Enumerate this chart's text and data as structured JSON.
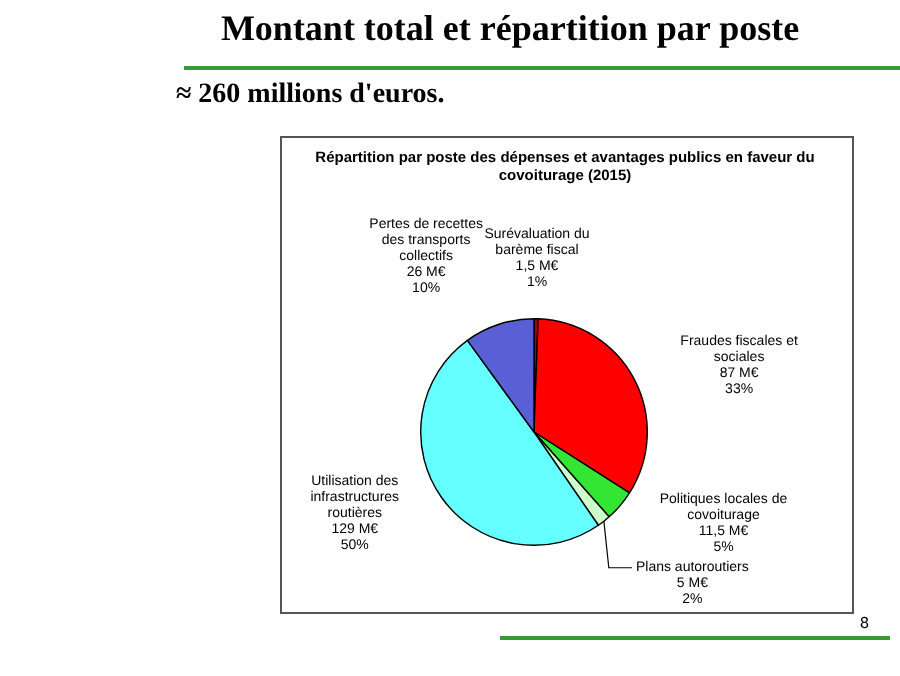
{
  "chart_data": {
    "type": "pie",
    "title": "Montant total et répartition par poste",
    "subtitle": "≈ 260 millions d'euros.",
    "annotations": [
      "Répartition par poste des dépenses et avantages publics en faveur du covoiturage (2015)",
      "8"
    ],
    "categories": [
      "Surévaluation du barème fiscal",
      "Fraudes fiscales et sociales",
      "Politiques locales de covoiturage",
      "Plans autoroutiers",
      "Utilisation des infrastructures routières",
      "Pertes de recettes des transports collectifs"
    ],
    "values": [
      1.5,
      87,
      11.5,
      5,
      129,
      26
    ],
    "colors": [
      "#b00000",
      "#ff0000",
      "#33e633",
      "#ccffcc",
      "#66ffff",
      "#5b5fd6"
    ],
    "value_labels": [
      "1,5 M€\n1%",
      "87 M€\n33%",
      "11,5 M€\n5%",
      "5 M€\n2%",
      "129 M€\n50%",
      "26 M€\n10%"
    ],
    "legend": false
  }
}
